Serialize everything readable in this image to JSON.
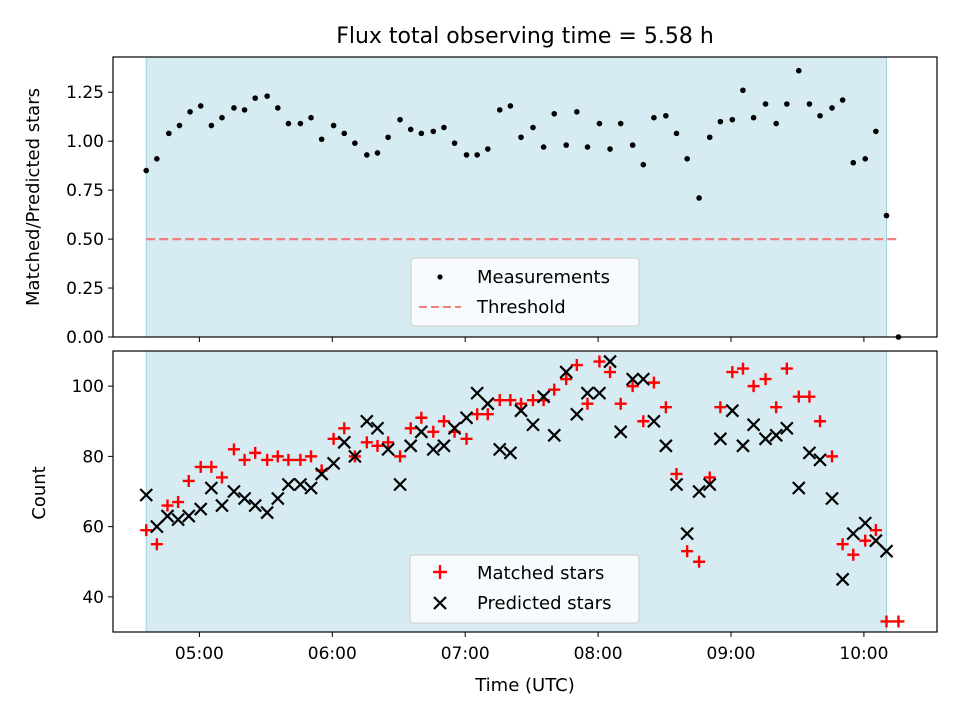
{
  "title": "Flux total observing time = 5.58 h",
  "colors": {
    "night_band": "#add8e6",
    "measurement": "#000000",
    "threshold": "#f08080",
    "matched": "#ff0000",
    "predicted": "#000000"
  },
  "chart_data": [
    {
      "type": "scatter",
      "title": "Flux total observing time = 5.58 h",
      "xlabel": "",
      "ylabel": "Matched/Predicted stars",
      "x_unit": "hours UTC",
      "xlim": [
        4.35,
        10.55
      ],
      "ylim": [
        0.0,
        1.43
      ],
      "yticks": [
        0.0,
        0.25,
        0.5,
        0.75,
        1.0,
        1.25
      ],
      "ytick_labels": [
        "0.00",
        "0.25",
        "0.50",
        "0.75",
        "1.00",
        "1.25"
      ],
      "shaded_span": [
        4.6,
        10.17
      ],
      "threshold": 0.5,
      "threshold_x": [
        4.6,
        10.27
      ],
      "legend": [
        "Measurements",
        "Threshold"
      ],
      "legend_position": "lower center",
      "series": [
        {
          "name": "Measurements",
          "points": [
            [
              4.6,
              0.85
            ],
            [
              4.68,
              0.91
            ],
            [
              4.77,
              1.04
            ],
            [
              4.85,
              1.08
            ],
            [
              4.93,
              1.15
            ],
            [
              5.01,
              1.18
            ],
            [
              5.09,
              1.08
            ],
            [
              5.17,
              1.12
            ],
            [
              5.26,
              1.17
            ],
            [
              5.34,
              1.16
            ],
            [
              5.42,
              1.22
            ],
            [
              5.51,
              1.23
            ],
            [
              5.59,
              1.17
            ],
            [
              5.67,
              1.09
            ],
            [
              5.76,
              1.09
            ],
            [
              5.84,
              1.12
            ],
            [
              5.92,
              1.01
            ],
            [
              6.01,
              1.08
            ],
            [
              6.09,
              1.04
            ],
            [
              6.17,
              0.99
            ],
            [
              6.26,
              0.93
            ],
            [
              6.34,
              0.94
            ],
            [
              6.42,
              1.02
            ],
            [
              6.51,
              1.11
            ],
            [
              6.59,
              1.06
            ],
            [
              6.67,
              1.04
            ],
            [
              6.76,
              1.05
            ],
            [
              6.84,
              1.07
            ],
            [
              6.92,
              0.99
            ],
            [
              7.01,
              0.93
            ],
            [
              7.09,
              0.93
            ],
            [
              7.17,
              0.96
            ],
            [
              7.26,
              1.16
            ],
            [
              7.34,
              1.18
            ],
            [
              7.42,
              1.02
            ],
            [
              7.51,
              1.07
            ],
            [
              7.59,
              0.97
            ],
            [
              7.67,
              1.14
            ],
            [
              7.76,
              0.98
            ],
            [
              7.84,
              1.15
            ],
            [
              7.92,
              0.97
            ],
            [
              8.01,
              1.09
            ],
            [
              8.09,
              0.96
            ],
            [
              8.17,
              1.09
            ],
            [
              8.26,
              0.98
            ],
            [
              8.34,
              0.88
            ],
            [
              8.42,
              1.12
            ],
            [
              8.51,
              1.13
            ],
            [
              8.59,
              1.04
            ],
            [
              8.67,
              0.91
            ],
            [
              8.76,
              0.71
            ],
            [
              8.84,
              1.02
            ],
            [
              8.92,
              1.1
            ],
            [
              9.01,
              1.11
            ],
            [
              9.09,
              1.26
            ],
            [
              9.17,
              1.12
            ],
            [
              9.26,
              1.19
            ],
            [
              9.34,
              1.09
            ],
            [
              9.42,
              1.19
            ],
            [
              9.51,
              1.36
            ],
            [
              9.59,
              1.19
            ],
            [
              9.67,
              1.13
            ],
            [
              9.76,
              1.17
            ],
            [
              9.84,
              1.21
            ],
            [
              9.92,
              0.89
            ],
            [
              10.01,
              0.91
            ],
            [
              10.09,
              1.05
            ],
            [
              10.17,
              0.62
            ],
            [
              10.26,
              0.0
            ]
          ]
        }
      ]
    },
    {
      "type": "scatter",
      "title": "",
      "xlabel": "Time (UTC)",
      "ylabel": "Count",
      "x_unit": "hours UTC",
      "xlim": [
        4.35,
        10.55
      ],
      "ylim": [
        30,
        110
      ],
      "xticks": [
        5,
        6,
        7,
        8,
        9,
        10
      ],
      "xtick_labels": [
        "05:00",
        "06:00",
        "07:00",
        "08:00",
        "09:00",
        "10:00"
      ],
      "yticks": [
        40,
        60,
        80,
        100
      ],
      "ytick_labels": [
        "40",
        "60",
        "80",
        "100"
      ],
      "shaded_span": [
        4.6,
        10.17
      ],
      "legend": [
        "Matched stars",
        "Predicted stars"
      ],
      "legend_position": "lower center",
      "series": [
        {
          "name": "Matched stars",
          "marker": "+",
          "points": [
            [
              4.6,
              59
            ],
            [
              4.68,
              55
            ],
            [
              4.76,
              66
            ],
            [
              4.84,
              67
            ],
            [
              4.92,
              73
            ],
            [
              5.01,
              77
            ],
            [
              5.09,
              77
            ],
            [
              5.17,
              74
            ],
            [
              5.26,
              82
            ],
            [
              5.34,
              79
            ],
            [
              5.42,
              81
            ],
            [
              5.51,
              79
            ],
            [
              5.59,
              80
            ],
            [
              5.67,
              79
            ],
            [
              5.76,
              79
            ],
            [
              5.84,
              80
            ],
            [
              5.92,
              76
            ],
            [
              6.01,
              85
            ],
            [
              6.09,
              88
            ],
            [
              6.17,
              80
            ],
            [
              6.26,
              84
            ],
            [
              6.34,
              83
            ],
            [
              6.42,
              84
            ],
            [
              6.51,
              80
            ],
            [
              6.59,
              88
            ],
            [
              6.67,
              91
            ],
            [
              6.76,
              87
            ],
            [
              6.84,
              90
            ],
            [
              6.92,
              87
            ],
            [
              7.01,
              85
            ],
            [
              7.09,
              92
            ],
            [
              7.17,
              92
            ],
            [
              7.26,
              96
            ],
            [
              7.34,
              96
            ],
            [
              7.42,
              95
            ],
            [
              7.51,
              96
            ],
            [
              7.59,
              96
            ],
            [
              7.67,
              99
            ],
            [
              7.76,
              102
            ],
            [
              7.84,
              106
            ],
            [
              7.92,
              95
            ],
            [
              8.01,
              107
            ],
            [
              8.09,
              104
            ],
            [
              8.17,
              95
            ],
            [
              8.26,
              100
            ],
            [
              8.34,
              90
            ],
            [
              8.42,
              101
            ],
            [
              8.51,
              94
            ],
            [
              8.59,
              75
            ],
            [
              8.67,
              53
            ],
            [
              8.76,
              50
            ],
            [
              8.84,
              74
            ],
            [
              8.92,
              94
            ],
            [
              9.01,
              104
            ],
            [
              9.09,
              105
            ],
            [
              9.17,
              100
            ],
            [
              9.26,
              102
            ],
            [
              9.34,
              94
            ],
            [
              9.42,
              105
            ],
            [
              9.51,
              97
            ],
            [
              9.59,
              97
            ],
            [
              9.67,
              90
            ],
            [
              9.76,
              80
            ],
            [
              9.84,
              55
            ],
            [
              9.92,
              52
            ],
            [
              10.01,
              56
            ],
            [
              10.09,
              59
            ],
            [
              10.17,
              33
            ],
            [
              10.26,
              33
            ]
          ]
        },
        {
          "name": "Predicted stars",
          "marker": "x",
          "points": [
            [
              4.6,
              69
            ],
            [
              4.68,
              60
            ],
            [
              4.76,
              63
            ],
            [
              4.84,
              62
            ],
            [
              4.92,
              63
            ],
            [
              5.01,
              65
            ],
            [
              5.09,
              71
            ],
            [
              5.17,
              66
            ],
            [
              5.26,
              70
            ],
            [
              5.34,
              68
            ],
            [
              5.42,
              66
            ],
            [
              5.51,
              64
            ],
            [
              5.59,
              68
            ],
            [
              5.67,
              72
            ],
            [
              5.76,
              72
            ],
            [
              5.84,
              71
            ],
            [
              5.92,
              75
            ],
            [
              6.01,
              78
            ],
            [
              6.09,
              84
            ],
            [
              6.17,
              80
            ],
            [
              6.26,
              90
            ],
            [
              6.34,
              88
            ],
            [
              6.42,
              82
            ],
            [
              6.51,
              72
            ],
            [
              6.59,
              83
            ],
            [
              6.67,
              87
            ],
            [
              6.76,
              82
            ],
            [
              6.84,
              83
            ],
            [
              6.92,
              88
            ],
            [
              7.01,
              91
            ],
            [
              7.09,
              98
            ],
            [
              7.17,
              95
            ],
            [
              7.26,
              82
            ],
            [
              7.34,
              81
            ],
            [
              7.42,
              93
            ],
            [
              7.51,
              89
            ],
            [
              7.59,
              97
            ],
            [
              7.67,
              86
            ],
            [
              7.76,
              104
            ],
            [
              7.84,
              92
            ],
            [
              7.92,
              98
            ],
            [
              8.01,
              98
            ],
            [
              8.09,
              107
            ],
            [
              8.17,
              87
            ],
            [
              8.26,
              102
            ],
            [
              8.34,
              102
            ],
            [
              8.42,
              90
            ],
            [
              8.51,
              83
            ],
            [
              8.59,
              72
            ],
            [
              8.67,
              58
            ],
            [
              8.76,
              70
            ],
            [
              8.84,
              72
            ],
            [
              8.92,
              85
            ],
            [
              9.01,
              93
            ],
            [
              9.09,
              83
            ],
            [
              9.17,
              89
            ],
            [
              9.26,
              85
            ],
            [
              9.34,
              86
            ],
            [
              9.42,
              88
            ],
            [
              9.51,
              71
            ],
            [
              9.59,
              81
            ],
            [
              9.67,
              79
            ],
            [
              9.76,
              68
            ],
            [
              9.84,
              45
            ],
            [
              9.92,
              58
            ],
            [
              10.01,
              61
            ],
            [
              10.09,
              56
            ],
            [
              10.17,
              53
            ]
          ]
        }
      ]
    }
  ]
}
